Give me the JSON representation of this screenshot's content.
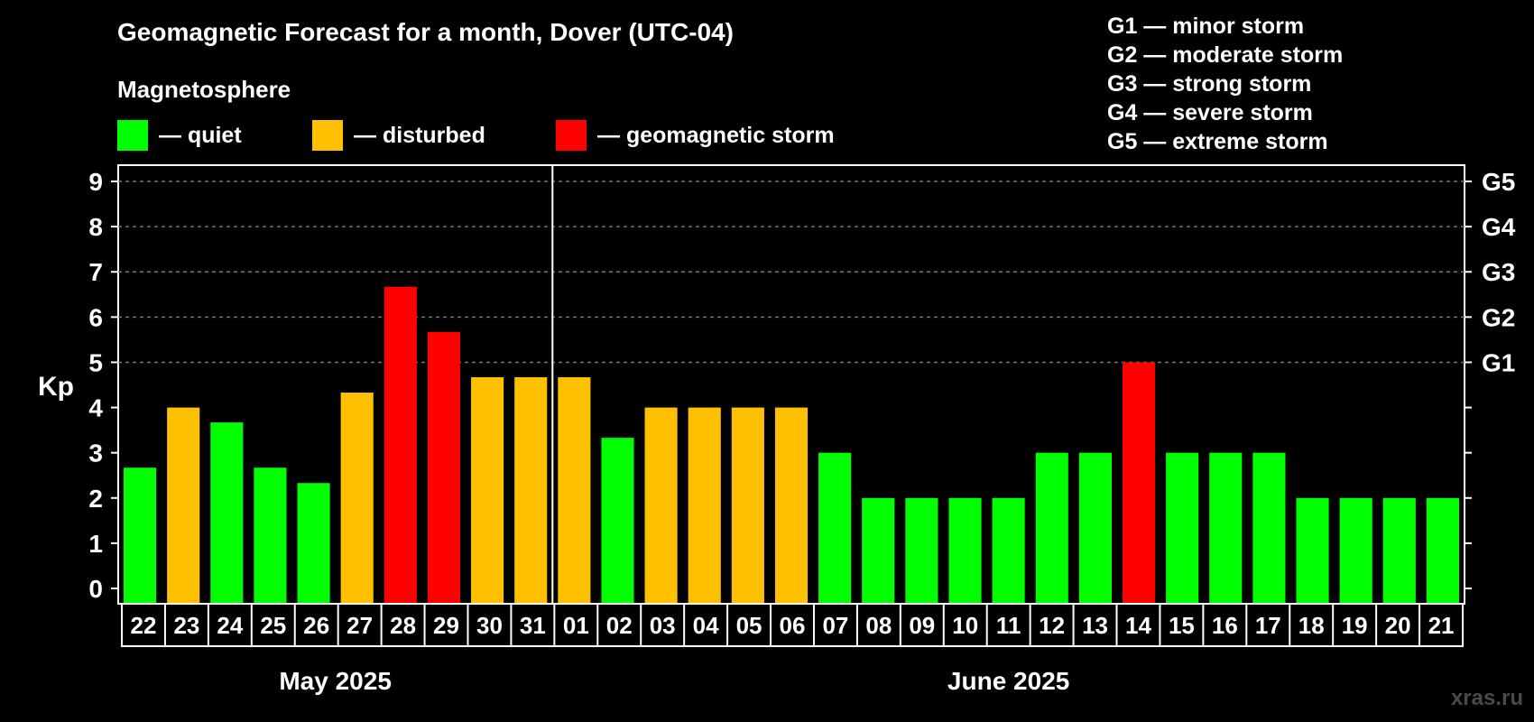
{
  "title": "Geomagnetic Forecast for a month, Dover (UTC-04)",
  "legend": {
    "heading": "Magnetosphere",
    "items": [
      {
        "label": "— quiet",
        "color": "#00ff00"
      },
      {
        "label": "— disturbed",
        "color": "#ffc000"
      },
      {
        "label": "— geomagnetic storm",
        "color": "#ff0000"
      }
    ]
  },
  "storm_scale": [
    "G1 — minor storm",
    "G2 — moderate storm",
    "G3 — strong storm",
    "G4 — severe storm",
    "G5 — extreme storm"
  ],
  "watermark": "xras.ru",
  "chart_data": {
    "type": "bar",
    "ylabel": "Kp",
    "ylim": [
      0,
      9
    ],
    "yticks": [
      "0",
      "1",
      "2",
      "3",
      "4",
      "5",
      "6",
      "7",
      "8",
      "9"
    ],
    "right_ticks": [
      {
        "value": 5,
        "label": "G1"
      },
      {
        "value": 6,
        "label": "G2"
      },
      {
        "value": 7,
        "label": "G3"
      },
      {
        "value": 8,
        "label": "G4"
      },
      {
        "value": 9,
        "label": "G5"
      }
    ],
    "grid": "dashed horizontal lines at 5, 6, 7, 8, 9",
    "months": [
      {
        "label": "May 2025",
        "days": 10
      },
      {
        "label": "June 2025",
        "days": 21
      }
    ],
    "categories": [
      "22",
      "23",
      "24",
      "25",
      "26",
      "27",
      "28",
      "29",
      "30",
      "31",
      "01",
      "02",
      "03",
      "04",
      "05",
      "06",
      "07",
      "08",
      "09",
      "10",
      "11",
      "12",
      "13",
      "14",
      "15",
      "16",
      "17",
      "18",
      "19",
      "20",
      "21"
    ],
    "values": [
      2.67,
      4.0,
      3.67,
      2.67,
      2.33,
      4.33,
      6.67,
      5.67,
      4.67,
      4.67,
      4.67,
      3.33,
      4.0,
      4.0,
      4.0,
      4.0,
      3.0,
      2.0,
      2.0,
      2.0,
      2.0,
      3.0,
      3.0,
      5.0,
      3.0,
      3.0,
      3.0,
      2.0,
      2.0,
      2.0,
      2.0
    ],
    "levels": [
      "quiet",
      "disturbed",
      "quiet",
      "quiet",
      "quiet",
      "disturbed",
      "storm",
      "storm",
      "disturbed",
      "disturbed",
      "disturbed",
      "quiet",
      "disturbed",
      "disturbed",
      "disturbed",
      "disturbed",
      "quiet",
      "quiet",
      "quiet",
      "quiet",
      "quiet",
      "quiet",
      "quiet",
      "storm",
      "quiet",
      "quiet",
      "quiet",
      "quiet",
      "quiet",
      "quiet",
      "quiet"
    ],
    "level_colors": {
      "quiet": "#00ff00",
      "disturbed": "#ffc000",
      "storm": "#ff0000"
    }
  }
}
